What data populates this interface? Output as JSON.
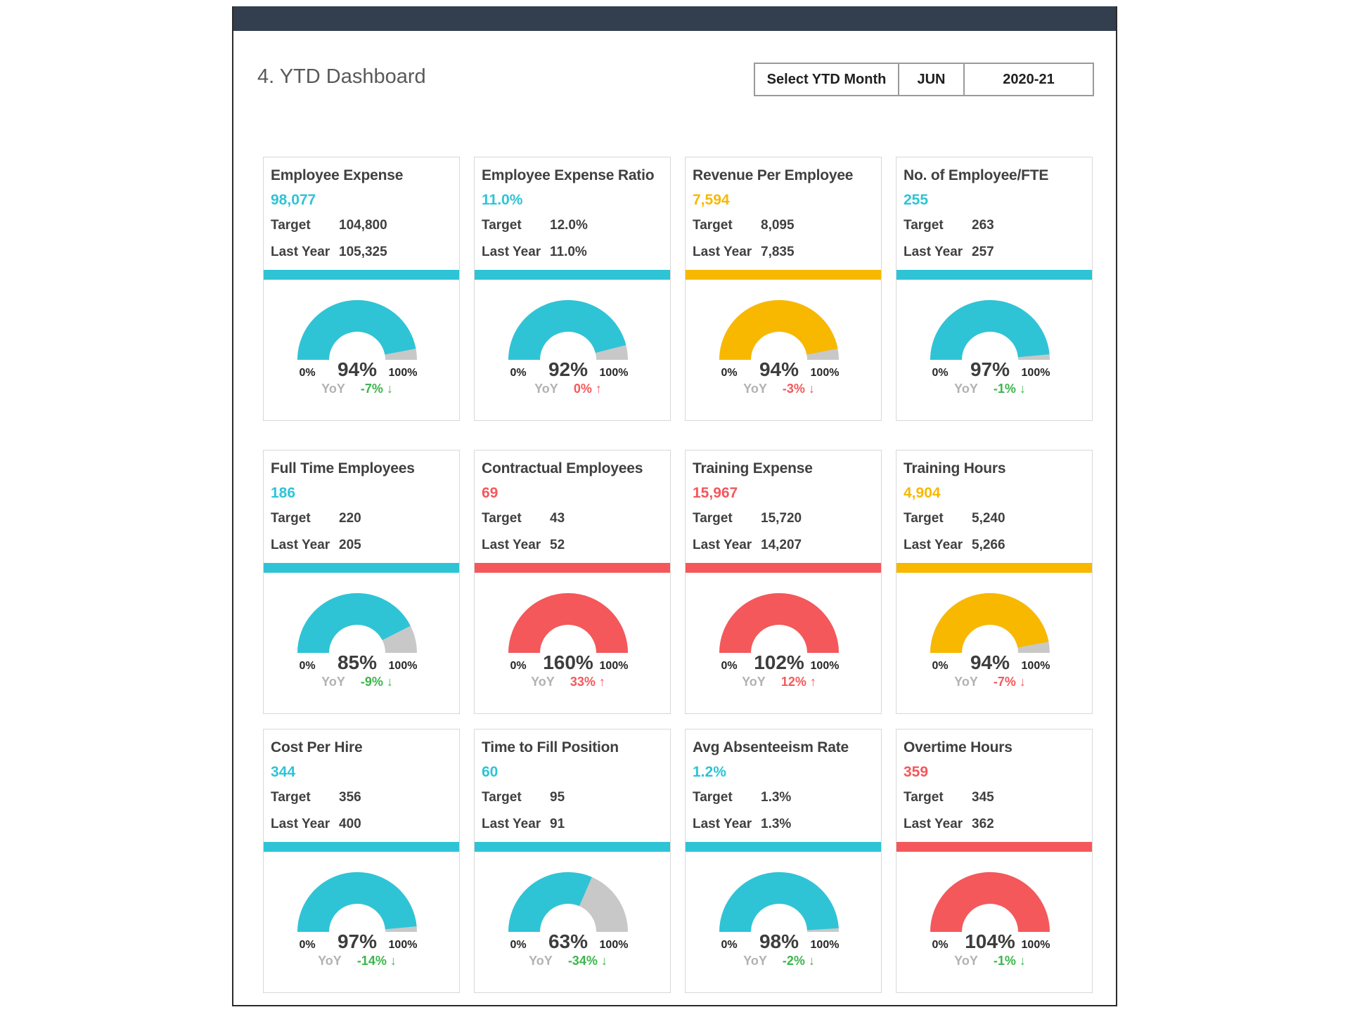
{
  "page": {
    "title": "4. YTD Dashboard"
  },
  "selector": {
    "label": "Select YTD Month",
    "month": "JUN",
    "year": "2020-21"
  },
  "labels": {
    "target": "Target",
    "last_year": "Last Year",
    "yoy": "YoY",
    "min": "0%",
    "max": "100%"
  },
  "colors": {
    "cyan": "#2ec4d6",
    "yellow": "#f8b800",
    "red": "#f4585b",
    "green": "#3cb54c",
    "gray_track": "#c8c8c8",
    "header_bar": "#333f4f"
  },
  "chart_data": [
    {
      "type": "gauge",
      "title": "Employee Expense",
      "value": "98,077",
      "target": "104,800",
      "last_year": "105,325",
      "pct": 94,
      "pct_label": "94%",
      "accent": "cyan",
      "yoy": "-7%",
      "yoy_dir": "down",
      "yoy_color": "green",
      "range": [
        "0%",
        "100%"
      ]
    },
    {
      "type": "gauge",
      "title": "Employee Expense Ratio",
      "value": "11.0%",
      "target": "12.0%",
      "last_year": "11.0%",
      "pct": 92,
      "pct_label": "92%",
      "accent": "cyan",
      "yoy": "0%",
      "yoy_dir": "up",
      "yoy_color": "red",
      "range": [
        "0%",
        "100%"
      ]
    },
    {
      "type": "gauge",
      "title": "Revenue Per Employee",
      "value": "7,594",
      "target": "8,095",
      "last_year": "7,835",
      "pct": 94,
      "pct_label": "94%",
      "accent": "yellow",
      "yoy": "-3%",
      "yoy_dir": "down",
      "yoy_color": "red",
      "range": [
        "0%",
        "100%"
      ]
    },
    {
      "type": "gauge",
      "title": "No. of Employee/FTE",
      "value": "255",
      "target": "263",
      "last_year": "257",
      "pct": 97,
      "pct_label": "97%",
      "accent": "cyan",
      "yoy": "-1%",
      "yoy_dir": "down",
      "yoy_color": "green",
      "range": [
        "0%",
        "100%"
      ]
    },
    {
      "type": "gauge",
      "title": "Full Time Employees",
      "value": "186",
      "target": "220",
      "last_year": "205",
      "pct": 85,
      "pct_label": "85%",
      "accent": "cyan",
      "yoy": "-9%",
      "yoy_dir": "down",
      "yoy_color": "green",
      "range": [
        "0%",
        "100%"
      ]
    },
    {
      "type": "gauge",
      "title": "Contractual Employees",
      "value": "69",
      "target": "43",
      "last_year": "52",
      "pct": 160,
      "pct_label": "160%",
      "accent": "red",
      "yoy": "33%",
      "yoy_dir": "up",
      "yoy_color": "red",
      "range": [
        "0%",
        "100%"
      ]
    },
    {
      "type": "gauge",
      "title": "Training Expense",
      "value": "15,967",
      "target": "15,720",
      "last_year": "14,207",
      "pct": 102,
      "pct_label": "102%",
      "accent": "red",
      "yoy": "12%",
      "yoy_dir": "up",
      "yoy_color": "red",
      "range": [
        "0%",
        "100%"
      ]
    },
    {
      "type": "gauge",
      "title": "Training Hours",
      "value": "4,904",
      "target": "5,240",
      "last_year": "5,266",
      "pct": 94,
      "pct_label": "94%",
      "accent": "yellow",
      "yoy": "-7%",
      "yoy_dir": "down",
      "yoy_color": "red",
      "range": [
        "0%",
        "100%"
      ]
    },
    {
      "type": "gauge",
      "title": "Cost Per Hire",
      "value": "344",
      "target": "356",
      "last_year": "400",
      "pct": 97,
      "pct_label": "97%",
      "accent": "cyan",
      "yoy": "-14%",
      "yoy_dir": "down",
      "yoy_color": "green",
      "range": [
        "0%",
        "100%"
      ]
    },
    {
      "type": "gauge",
      "title": "Time to Fill Position",
      "value": "60",
      "target": "95",
      "last_year": "91",
      "pct": 63,
      "pct_label": "63%",
      "accent": "cyan",
      "yoy": "-34%",
      "yoy_dir": "down",
      "yoy_color": "green",
      "range": [
        "0%",
        "100%"
      ]
    },
    {
      "type": "gauge",
      "title": "Avg Absenteeism Rate",
      "value": "1.2%",
      "target": "1.3%",
      "last_year": "1.3%",
      "pct": 98,
      "pct_label": "98%",
      "accent": "cyan",
      "yoy": "-2%",
      "yoy_dir": "down",
      "yoy_color": "green",
      "range": [
        "0%",
        "100%"
      ]
    },
    {
      "type": "gauge",
      "title": "Overtime Hours",
      "value": "359",
      "target": "345",
      "last_year": "362",
      "pct": 104,
      "pct_label": "104%",
      "accent": "red",
      "yoy": "-1%",
      "yoy_dir": "down",
      "yoy_color": "green",
      "range": [
        "0%",
        "100%"
      ]
    }
  ]
}
